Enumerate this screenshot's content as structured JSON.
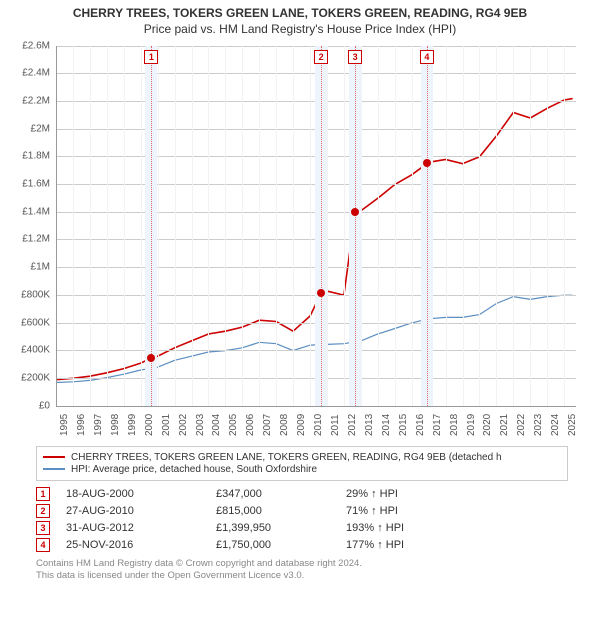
{
  "title_line1": "CHERRY TREES, TOKERS GREEN LANE, TOKERS GREEN, READING, RG4 9EB",
  "title_line2": "Price paid vs. HM Land Registry's House Price Index (HPI)",
  "chart": {
    "type": "line",
    "background_color": "#ffffff",
    "grid_color": "#cccccc",
    "minor_grid_color": "#f2f2f2",
    "x": {
      "min": 1995,
      "max": 2025.7,
      "ticks": [
        1995,
        1996,
        1997,
        1998,
        1999,
        2000,
        2001,
        2002,
        2003,
        2004,
        2005,
        2006,
        2007,
        2008,
        2009,
        2010,
        2011,
        2012,
        2013,
        2014,
        2015,
        2016,
        2017,
        2018,
        2019,
        2020,
        2021,
        2022,
        2023,
        2024,
        2025
      ]
    },
    "y": {
      "min": 0,
      "max": 2600000,
      "tick_step": 200000,
      "tick_labels": [
        "£0",
        "£200K",
        "£400K",
        "£600K",
        "£800K",
        "£1M",
        "£1.2M",
        "£1.4M",
        "£1.6M",
        "£1.8M",
        "£2M",
        "£2.2M",
        "£2.4M",
        "£2.6M"
      ]
    },
    "series": [
      {
        "name": "CHERRY TREES, TOKERS GREEN LANE, TOKERS GREEN, READING, RG4 9EB (detached h",
        "color": "#cc0000",
        "width": 1.6,
        "points": [
          [
            1995,
            190000
          ],
          [
            1996,
            200000
          ],
          [
            1997,
            215000
          ],
          [
            1998,
            240000
          ],
          [
            1999,
            270000
          ],
          [
            2000,
            310000
          ],
          [
            2000.63,
            347000
          ],
          [
            2001,
            360000
          ],
          [
            2002,
            420000
          ],
          [
            2003,
            470000
          ],
          [
            2004,
            520000
          ],
          [
            2005,
            540000
          ],
          [
            2006,
            570000
          ],
          [
            2007,
            620000
          ],
          [
            2008,
            610000
          ],
          [
            2009,
            540000
          ],
          [
            2010,
            650000
          ],
          [
            2010.65,
            815000
          ],
          [
            2011,
            830000
          ],
          [
            2012,
            800000
          ],
          [
            2012.66,
            1399950
          ],
          [
            2013,
            1410000
          ],
          [
            2014,
            1500000
          ],
          [
            2015,
            1600000
          ],
          [
            2016,
            1670000
          ],
          [
            2016.9,
            1750000
          ],
          [
            2017,
            1760000
          ],
          [
            2018,
            1780000
          ],
          [
            2019,
            1750000
          ],
          [
            2020,
            1800000
          ],
          [
            2021,
            1950000
          ],
          [
            2022,
            2120000
          ],
          [
            2023,
            2080000
          ],
          [
            2024,
            2150000
          ],
          [
            2025,
            2210000
          ],
          [
            2025.5,
            2220000
          ]
        ]
      },
      {
        "name": "HPI: Average price, detached house, South Oxfordshire",
        "color": "#5b8ec1",
        "width": 1.2,
        "points": [
          [
            1995,
            170000
          ],
          [
            1996,
            175000
          ],
          [
            1997,
            185000
          ],
          [
            1998,
            205000
          ],
          [
            1999,
            230000
          ],
          [
            2000,
            260000
          ],
          [
            2001,
            280000
          ],
          [
            2002,
            330000
          ],
          [
            2003,
            360000
          ],
          [
            2004,
            390000
          ],
          [
            2005,
            400000
          ],
          [
            2006,
            420000
          ],
          [
            2007,
            460000
          ],
          [
            2008,
            450000
          ],
          [
            2009,
            400000
          ],
          [
            2010,
            440000
          ],
          [
            2011,
            445000
          ],
          [
            2012,
            450000
          ],
          [
            2013,
            470000
          ],
          [
            2014,
            520000
          ],
          [
            2015,
            560000
          ],
          [
            2016,
            600000
          ],
          [
            2017,
            630000
          ],
          [
            2018,
            640000
          ],
          [
            2019,
            640000
          ],
          [
            2020,
            660000
          ],
          [
            2021,
            740000
          ],
          [
            2022,
            790000
          ],
          [
            2023,
            770000
          ],
          [
            2024,
            790000
          ],
          [
            2025,
            800000
          ],
          [
            2025.5,
            800000
          ]
        ]
      }
    ],
    "markers": [
      {
        "n": "1",
        "year": 2000.63,
        "price": 347000
      },
      {
        "n": "2",
        "year": 2010.65,
        "price": 815000
      },
      {
        "n": "3",
        "year": 2012.66,
        "price": 1399950
      },
      {
        "n": "4",
        "year": 2016.9,
        "price": 1750000
      }
    ],
    "marker_band_color": "#eef4fb",
    "marker_dash_color": "#e06666",
    "marker_box_border": "#cc0000",
    "marker_box_text": "#cc0000",
    "dot_color": "#cc0000"
  },
  "legend": [
    {
      "color": "#cc0000",
      "label": "CHERRY TREES, TOKERS GREEN LANE, TOKERS GREEN, READING, RG4 9EB (detached h"
    },
    {
      "color": "#5b8ec1",
      "label": "HPI: Average price, detached house, South Oxfordshire"
    }
  ],
  "sales": [
    {
      "n": "1",
      "date": "18-AUG-2000",
      "price": "£347,000",
      "pct": "29% ↑ HPI"
    },
    {
      "n": "2",
      "date": "27-AUG-2010",
      "price": "£815,000",
      "pct": "71% ↑ HPI"
    },
    {
      "n": "3",
      "date": "31-AUG-2012",
      "price": "£1,399,950",
      "pct": "193% ↑ HPI"
    },
    {
      "n": "4",
      "date": "25-NOV-2016",
      "price": "£1,750,000",
      "pct": "177% ↑ HPI"
    }
  ],
  "footer_line1": "Contains HM Land Registry data © Crown copyright and database right 2024.",
  "footer_line2": "This data is licensed under the Open Government Licence v3.0."
}
